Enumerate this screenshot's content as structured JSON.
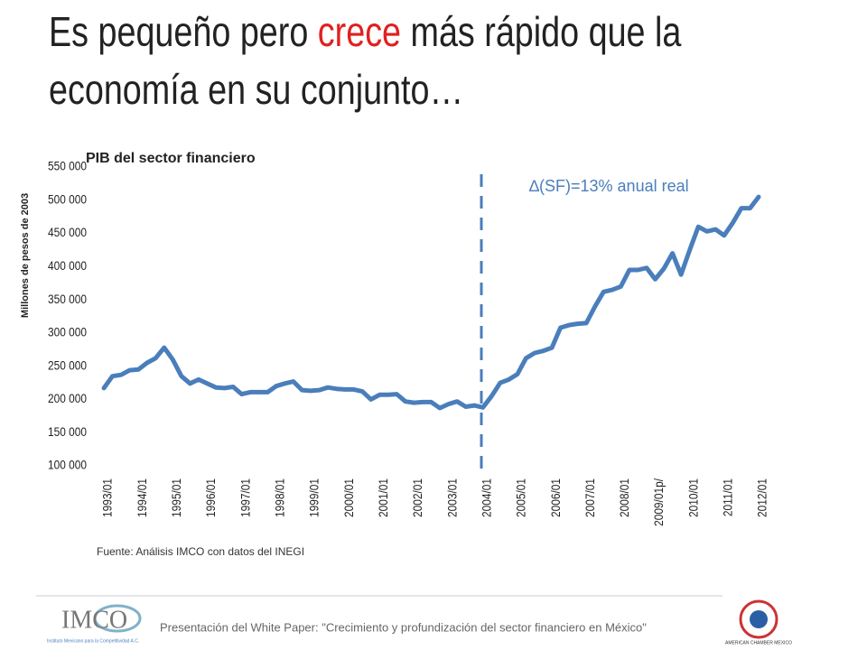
{
  "title_line1": [
    "Es pequeño pero ",
    "crece",
    " más rápido que la"
  ],
  "title_line2": "economía en su conjunto…",
  "chart_data": {
    "type": "line",
    "subtitle": "PIB del sector financiero",
    "y_label": "Millones de pesos de 2003",
    "annotation": "∆(SF)=13% anual real",
    "source": "Fuente: Análisis IMCO con datos del INEGI",
    "color": "#4a7ebb",
    "categories": [
      "1993/01",
      null,
      null,
      null,
      "1994/01",
      null,
      null,
      null,
      "1995/01",
      null,
      null,
      null,
      "1996/01",
      null,
      null,
      null,
      "1997/01",
      null,
      null,
      null,
      "1998/01",
      null,
      null,
      null,
      "1999/01",
      null,
      null,
      null,
      "2000/01",
      null,
      null,
      null,
      "2001/01",
      null,
      null,
      null,
      "2002/01",
      null,
      null,
      null,
      "2003/01",
      null,
      null,
      null,
      "2004/01",
      null,
      null,
      null,
      "2005/01",
      null,
      null,
      null,
      "2006/01",
      null,
      null,
      null,
      "2007/01",
      null,
      null,
      null,
      "2008/01",
      null,
      null,
      null,
      "2009/01p/",
      null,
      null,
      null,
      "2010/01",
      null,
      null,
      null,
      "2011/01",
      null,
      null,
      null,
      "2012/01"
    ],
    "values": [
      217000,
      235000,
      237000,
      244000,
      245000,
      255000,
      262000,
      278000,
      260000,
      235000,
      224000,
      230000,
      224000,
      218000,
      217000,
      219000,
      208000,
      211000,
      211000,
      211000,
      220000,
      224000,
      227000,
      214000,
      213000,
      214000,
      218000,
      216000,
      215000,
      215000,
      212000,
      200000,
      207000,
      207000,
      208000,
      197000,
      195000,
      196000,
      196000,
      187000,
      193000,
      197000,
      189000,
      191000,
      188000,
      205000,
      225000,
      230000,
      238000,
      262000,
      270000,
      273000,
      278000,
      308000,
      312000,
      314000,
      315000,
      340000,
      362000,
      365000,
      370000,
      395000,
      395000,
      398000,
      381000,
      397000,
      420000,
      388000,
      425000,
      460000,
      453000,
      456000,
      447000,
      466000,
      488000,
      488000,
      505000
    ],
    "ylim": [
      100000,
      550000
    ],
    "yticks": [
      {
        "value": 100000,
        "label": "100 000"
      },
      {
        "value": 150000,
        "label": "150 000"
      },
      {
        "value": 200000,
        "label": "200 000"
      },
      {
        "value": 250000,
        "label": "250 000"
      },
      {
        "value": 300000,
        "label": "300 000"
      },
      {
        "value": 350000,
        "label": "350 000"
      },
      {
        "value": 400000,
        "label": "400 000"
      },
      {
        "value": 450000,
        "label": "450 000"
      },
      {
        "value": 500000,
        "label": "500 000"
      },
      {
        "value": 550000,
        "label": "550 000"
      }
    ],
    "grid": false
  },
  "footer": "Presentación del White Paper: \"Crecimiento y profundización del sector financiero en México\"",
  "logo_left": {
    "name": "IMCO",
    "caption": "Instituto Mexicano para la Competitividad A.C."
  },
  "logo_right": {
    "caption": "AMERICAN CHAMBER MEXICO"
  }
}
